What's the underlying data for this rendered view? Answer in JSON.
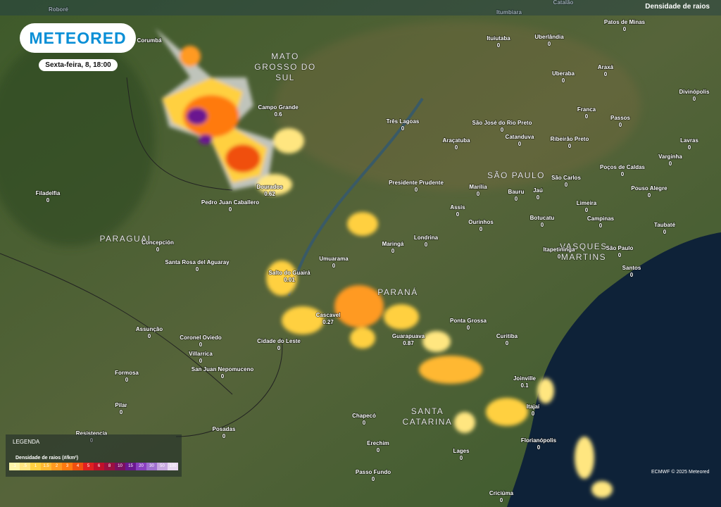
{
  "header": {
    "layer": "Densidade de raios",
    "logo": "METEORED",
    "date": "Sexta-feira, 8, 18:00"
  },
  "regions": [
    "MATO GROSSO DO SUL",
    "PARAGUAI",
    "SÃO PAULO",
    "PARANÁ",
    "SANTA CATARINA",
    "VASQUES MARTINS"
  ],
  "cities": [
    {
      "name": "Roboré"
    },
    {
      "name": "Corumbá"
    },
    {
      "name": "Itumbiara"
    },
    {
      "name": "Catalão"
    },
    {
      "name": "Campo Grande",
      "value": 0.6
    },
    {
      "name": "Três Lagoas",
      "value": 0
    },
    {
      "name": "São José do Rio Preto",
      "value": 0
    },
    {
      "name": "Araçatuba",
      "value": 0
    },
    {
      "name": "Catanduva",
      "value": 0
    },
    {
      "name": "Ribeirão Preto",
      "value": 0
    },
    {
      "name": "Franca",
      "value": 0
    },
    {
      "name": "Passos",
      "value": 0
    },
    {
      "name": "Uberaba",
      "value": 0
    },
    {
      "name": "Araxá",
      "value": 0
    },
    {
      "name": "Uberlândia",
      "value": 0
    },
    {
      "name": "Ituiutaba",
      "value": 0
    },
    {
      "name": "Patos de Minas",
      "value": 0
    },
    {
      "name": "Divinópolis",
      "value": 0
    },
    {
      "name": "Lavras",
      "value": 0
    },
    {
      "name": "Varginha",
      "value": 0
    },
    {
      "name": "Poços de Caldas",
      "value": 0
    },
    {
      "name": "Pouso Alegre",
      "value": 0
    },
    {
      "name": "Taubaté",
      "value": 0
    },
    {
      "name": "São Paulo",
      "value": 0
    },
    {
      "name": "Santos",
      "value": 0
    },
    {
      "name": "Campinas",
      "value": 0
    },
    {
      "name": "Limeira",
      "value": 0
    },
    {
      "name": "Botucatu",
      "value": 0
    },
    {
      "name": "Itapetininga",
      "value": 0
    },
    {
      "name": "Bauru",
      "value": 0
    },
    {
      "name": "Jaú",
      "value": 0
    },
    {
      "name": "São Carlos",
      "value": 0
    },
    {
      "name": "Marília",
      "value": 0
    },
    {
      "name": "Assis",
      "value": 0
    },
    {
      "name": "Ourinhos",
      "value": 0
    },
    {
      "name": "Presidente Prudente",
      "value": 0
    },
    {
      "name": "Londrina",
      "value": 0
    },
    {
      "name": "Maringá",
      "value": 0
    },
    {
      "name": "Umuarama",
      "value": 0
    },
    {
      "name": "Dourados",
      "value": 0.62
    },
    {
      "name": "Pedro Juan Caballero",
      "value": 0
    },
    {
      "name": "Filadelfia",
      "value": 0
    },
    {
      "name": "Concepción",
      "value": 0
    },
    {
      "name": "Santa Rosa del Aguaray",
      "value": 0
    },
    {
      "name": "Salto do Guairá",
      "value": 0.01
    },
    {
      "name": "Cascavel",
      "value": 0.27
    },
    {
      "name": "Guarapuava",
      "value": 0.87
    },
    {
      "name": "Ponta Grossa",
      "value": 0
    },
    {
      "name": "Curitiba",
      "value": 0
    },
    {
      "name": "Cidade do Leste",
      "value": 0
    },
    {
      "name": "Assunção",
      "value": 0
    },
    {
      "name": "Coronel Oviedo",
      "value": 0
    },
    {
      "name": "Villarrica",
      "value": 0
    },
    {
      "name": "San Juan Nepomuceno",
      "value": 0
    },
    {
      "name": "Formosa",
      "value": 0
    },
    {
      "name": "Pilar",
      "value": 0
    },
    {
      "name": "Resistencia",
      "value": 0
    },
    {
      "name": "Posadas",
      "value": 0
    },
    {
      "name": "Chapecó",
      "value": 0
    },
    {
      "name": "Erechim",
      "value": 0
    },
    {
      "name": "Lages",
      "value": 0
    },
    {
      "name": "Florianópolis",
      "value": 0
    },
    {
      "name": "Joinville",
      "value": 0.1
    },
    {
      "name": "Itajaí",
      "value": 0
    },
    {
      "name": "Passo Fundo",
      "value": 0
    },
    {
      "name": "Criciúma",
      "value": 0
    }
  ],
  "legend": {
    "title": "LEGENDA",
    "subtitle": "Densidade de raios (#/km²)",
    "scale": [
      {
        "label": ".1",
        "color": "#fff6a8"
      },
      {
        "label": ".5",
        "color": "#ffe680"
      },
      {
        "label": "1",
        "color": "#ffd040"
      },
      {
        "label": "1.5",
        "color": "#ffb830"
      },
      {
        "label": "2",
        "color": "#ff9a20"
      },
      {
        "label": "3",
        "color": "#ff7a10"
      },
      {
        "label": "4",
        "color": "#f05010"
      },
      {
        "label": "5",
        "color": "#e02020"
      },
      {
        "label": "6",
        "color": "#c0102a"
      },
      {
        "label": "8",
        "color": "#9a1040"
      },
      {
        "label": "10",
        "color": "#7a1060"
      },
      {
        "label": "15",
        "color": "#6a1890"
      },
      {
        "label": "20",
        "color": "#8a40c0"
      },
      {
        "label": "30",
        "color": "#a070d0"
      },
      {
        "label": "50",
        "color": "#c8a8e0"
      },
      {
        "label": "100",
        "color": "#e8d8f0"
      }
    ]
  },
  "credit": "ECMWF © 2025 Meteored"
}
